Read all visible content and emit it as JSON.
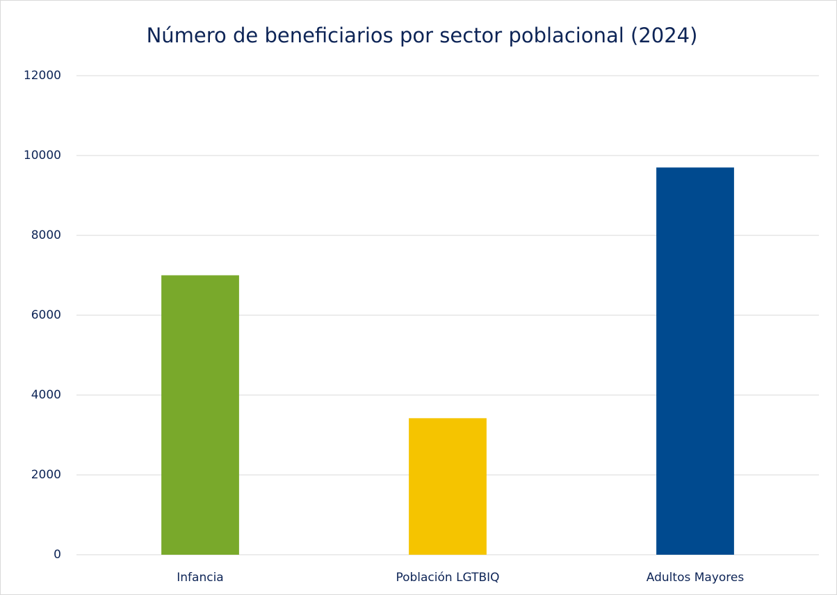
{
  "chart_data": {
    "type": "bar",
    "title": "Número de beneficiarios por sector poblacional (2024)",
    "categories": [
      "Infancia",
      "Población LGTBIQ",
      "Adultos Mayores"
    ],
    "values": [
      7000,
      3420,
      9700
    ],
    "colors": [
      "#79a92b",
      "#f5c400",
      "#004a8f"
    ],
    "ylim": [
      0,
      12000
    ],
    "yticks": [
      0,
      2000,
      4000,
      6000,
      8000,
      10000,
      12000
    ],
    "grid": true
  }
}
